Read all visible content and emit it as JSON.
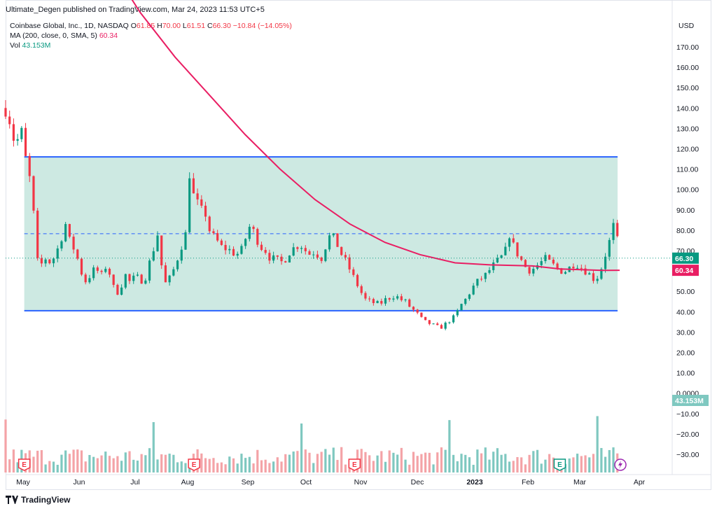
{
  "header": {
    "text": "Ultimate_Degen published on TradingView.com, Mar 24, 2023 11:53 UTC+5"
  },
  "legend": {
    "title": "Coinbase Global, Inc., 1D, NASDAQ",
    "o_label": "O",
    "o": "61.85",
    "h_label": "H",
    "h": "70.00",
    "l_label": "L",
    "l": "61.51",
    "c_label": "C",
    "c": "66.30",
    "change": "−10.84 (−14.05%)",
    "ma_label": "MA (200, close, 0, SMA, 5)",
    "ma_value": "60.34",
    "vol_label": "Vol",
    "vol_value": "43.153M"
  },
  "footer": {
    "brand": "TradingView"
  },
  "colors": {
    "up": "#089981",
    "down": "#f23645",
    "vol_up": "#7fc8c0",
    "vol_down": "#f4a3a7",
    "ma": "#e91e63",
    "range": "#2962ff",
    "range_fill": "#cde9e2",
    "label_green": "#089981",
    "label_pink": "#e91e63"
  },
  "chart_data": {
    "type": "candlestick",
    "title": "Coinbase Global, Inc., 1D, NASDAQ",
    "currency": "USD",
    "price_axis": {
      "unit": "USD",
      "ticks": [
        "170.00",
        "160.00",
        "150.00",
        "140.00",
        "130.00",
        "120.00",
        "110.00",
        "100.00",
        "90.00",
        "80.00",
        "70.00",
        "60.00",
        "50.00",
        "40.00",
        "30.00",
        "20.00",
        "10.00",
        "0.0000",
        "−10.00",
        "−20.00",
        "−30.00"
      ]
    },
    "time_axis": {
      "ticks": [
        "May",
        "Jun",
        "Jul",
        "Aug",
        "Sep",
        "Oct",
        "Nov",
        "Dec",
        "2023",
        "Feb",
        "Mar",
        "Apr"
      ]
    },
    "range_box": {
      "top": 116,
      "bottom": 40.5,
      "mid": 78.3,
      "start": "2022-05-10",
      "end": "2023-03-24"
    },
    "last_price_label": "66.30",
    "ma_label_value": "60.34",
    "vol_label_value": "43.153M",
    "earnings_markers": [
      "2022-05-10",
      "2022-08-09",
      "2022-11-03",
      "2023-02-21"
    ],
    "earnings_letter": "E",
    "price_anchors": [
      [
        0,
        140
      ],
      [
        5,
        133
      ],
      [
        10,
        120
      ],
      [
        15,
        131
      ],
      [
        20,
        115
      ],
      [
        25,
        103
      ],
      [
        30,
        78
      ],
      [
        33,
        58
      ],
      [
        38,
        67
      ],
      [
        45,
        64
      ],
      [
        50,
        68
      ],
      [
        55,
        75
      ],
      [
        60,
        83
      ],
      [
        65,
        73
      ],
      [
        70,
        70
      ],
      [
        75,
        60
      ],
      [
        80,
        55
      ],
      [
        85,
        58
      ],
      [
        90,
        62
      ],
      [
        95,
        57
      ],
      [
        100,
        62
      ],
      [
        105,
        58
      ],
      [
        110,
        48
      ],
      [
        115,
        52
      ],
      [
        120,
        58
      ],
      [
        125,
        54
      ],
      [
        130,
        58
      ],
      [
        135,
        55
      ],
      [
        140,
        57
      ],
      [
        145,
        66
      ],
      [
        150,
        74
      ],
      [
        152,
        78
      ],
      [
        155,
        65
      ],
      [
        160,
        54
      ],
      [
        165,
        57
      ],
      [
        170,
        63
      ],
      [
        175,
        71
      ],
      [
        180,
        78
      ],
      [
        183,
        116
      ],
      [
        185,
        100
      ],
      [
        190,
        95
      ],
      [
        195,
        90
      ],
      [
        200,
        88
      ],
      [
        205,
        78
      ],
      [
        210,
        76
      ],
      [
        215,
        72
      ],
      [
        220,
        71
      ],
      [
        225,
        70
      ],
      [
        230,
        68
      ],
      [
        235,
        69
      ],
      [
        240,
        76
      ],
      [
        245,
        83
      ],
      [
        250,
        77
      ],
      [
        255,
        72
      ],
      [
        260,
        70
      ],
      [
        265,
        66
      ],
      [
        270,
        66
      ],
      [
        275,
        64
      ],
      [
        280,
        66
      ],
      [
        285,
        70
      ],
      [
        290,
        72
      ],
      [
        295,
        73
      ],
      [
        300,
        70
      ],
      [
        305,
        68
      ],
      [
        310,
        70
      ],
      [
        315,
        65
      ],
      [
        320,
        72
      ],
      [
        325,
        78
      ],
      [
        330,
        75
      ],
      [
        335,
        69
      ],
      [
        340,
        65
      ],
      [
        345,
        60
      ],
      [
        350,
        55
      ],
      [
        355,
        50
      ],
      [
        360,
        46
      ],
      [
        365,
        45
      ],
      [
        370,
        44
      ],
      [
        375,
        44
      ],
      [
        380,
        46
      ],
      [
        385,
        47
      ],
      [
        390,
        48
      ],
      [
        395,
        46
      ],
      [
        400,
        45
      ],
      [
        405,
        42
      ],
      [
        410,
        40
      ],
      [
        415,
        37
      ],
      [
        420,
        35
      ],
      [
        425,
        34
      ],
      [
        430,
        33
      ],
      [
        435,
        32
      ],
      [
        440,
        34
      ],
      [
        445,
        36
      ],
      [
        450,
        38
      ],
      [
        455,
        43
      ],
      [
        460,
        46
      ],
      [
        465,
        50
      ],
      [
        470,
        54
      ],
      [
        475,
        56
      ],
      [
        480,
        58
      ],
      [
        485,
        61
      ],
      [
        490,
        64
      ],
      [
        495,
        66
      ],
      [
        500,
        70
      ],
      [
        502,
        82
      ],
      [
        505,
        76
      ],
      [
        510,
        70
      ],
      [
        515,
        66
      ],
      [
        520,
        62
      ],
      [
        525,
        60
      ],
      [
        530,
        62
      ],
      [
        535,
        64
      ],
      [
        540,
        66
      ],
      [
        545,
        64
      ],
      [
        550,
        62
      ],
      [
        555,
        60
      ],
      [
        560,
        60
      ],
      [
        565,
        62
      ],
      [
        570,
        64
      ],
      [
        575,
        62
      ],
      [
        580,
        60
      ],
      [
        585,
        58
      ],
      [
        590,
        55
      ],
      [
        595,
        60
      ],
      [
        600,
        68
      ],
      [
        605,
        76
      ],
      [
        608,
        82
      ],
      [
        611,
        78
      ],
      [
        615,
        66
      ]
    ],
    "ma_anchors": [
      [
        150,
        214
      ],
      [
        200,
        187
      ],
      [
        250,
        165
      ],
      [
        300,
        146
      ],
      [
        350,
        127
      ],
      [
        400,
        110
      ],
      [
        450,
        95
      ],
      [
        500,
        83
      ],
      [
        550,
        74
      ],
      [
        600,
        68
      ],
      [
        650,
        64
      ],
      [
        700,
        63
      ],
      [
        760,
        62.5
      ],
      [
        800,
        61
      ],
      [
        860,
        60.3
      ],
      [
        885,
        60.34
      ]
    ]
  }
}
